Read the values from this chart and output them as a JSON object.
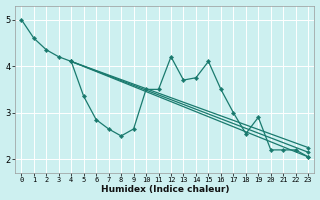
{
  "xlabel": "Humidex (Indice chaleur)",
  "bg_color": "#cdf0f0",
  "grid_color": "#ffffff",
  "line_color": "#1a7a6e",
  "marker_color": "#1a7a6e",
  "xlim": [
    -0.5,
    23.5
  ],
  "ylim": [
    1.7,
    5.3
  ],
  "yticks": [
    2,
    3,
    4,
    5
  ],
  "lines": [
    {
      "x": [
        0,
        1,
        2,
        3,
        4,
        5,
        6,
        7,
        8,
        9,
        10,
        11,
        12,
        13,
        14,
        15,
        16,
        17,
        18,
        19,
        20,
        21,
        22,
        23
      ],
      "y": [
        5.0,
        4.6,
        4.35,
        4.2,
        4.1,
        3.35,
        2.85,
        2.65,
        2.5,
        2.65,
        3.5,
        3.5,
        4.2,
        3.7,
        3.75,
        4.1,
        3.5,
        3.0,
        2.55,
        2.9,
        2.2,
        2.2,
        2.2,
        2.05
      ]
    },
    {
      "x": [
        4,
        23
      ],
      "y": [
        4.1,
        2.05
      ]
    },
    {
      "x": [
        4,
        23
      ],
      "y": [
        4.1,
        2.15
      ]
    },
    {
      "x": [
        4,
        23
      ],
      "y": [
        4.1,
        2.25
      ]
    }
  ],
  "xtick_labels": [
    "0",
    "1",
    "2",
    "3",
    "4",
    "5",
    "6",
    "7",
    "8",
    "9",
    "10",
    "11",
    "12",
    "13",
    "14",
    "15",
    "16",
    "17",
    "18",
    "19",
    "20",
    "21",
    "22",
    "23"
  ]
}
